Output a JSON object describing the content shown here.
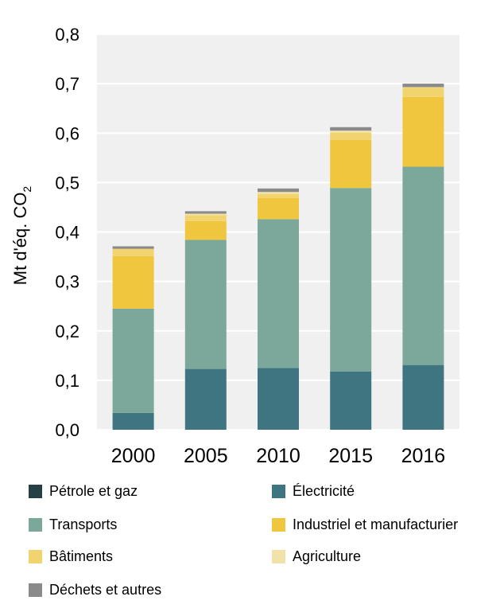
{
  "chart_data": {
    "type": "bar",
    "stacked": true,
    "categories": [
      "2000",
      "2005",
      "2010",
      "2015",
      "2016"
    ],
    "ylabel": "Mt d'éq. CO",
    "ylabel_subscript": "2",
    "ylim": [
      0,
      0.8
    ],
    "yticks": [
      "0,0",
      "0,1",
      "0,2",
      "0,3",
      "0,4",
      "0,5",
      "0,6",
      "0,7",
      "0,8"
    ],
    "grid": true,
    "legend_position": "bottom",
    "series": [
      {
        "name": "Pétrole et gaz",
        "color": "#263f45",
        "values": [
          0,
          0,
          0,
          0,
          0
        ]
      },
      {
        "name": "Électricité",
        "color": "#3f7580",
        "values": [
          0.034,
          0.123,
          0.125,
          0.118,
          0.131
        ]
      },
      {
        "name": "Transports",
        "color": "#7ba89b",
        "values": [
          0.211,
          0.261,
          0.301,
          0.371,
          0.401
        ]
      },
      {
        "name": "Industriel et manufacturier",
        "color": "#f0c63e",
        "values": [
          0.106,
          0.038,
          0.043,
          0.097,
          0.141
        ]
      },
      {
        "name": "Bâtiments",
        "color": "#f2d46e",
        "values": [
          0.015,
          0.012,
          0.008,
          0.015,
          0.019
        ]
      },
      {
        "name": "Agriculture",
        "color": "#f0e2a8",
        "values": [
          0,
          0.003,
          0.004,
          0.004,
          0.001
        ]
      },
      {
        "name": "Déchets et autres",
        "color": "#8a8a8a",
        "values": [
          0.005,
          0.005,
          0.007,
          0.007,
          0.007
        ]
      }
    ]
  }
}
